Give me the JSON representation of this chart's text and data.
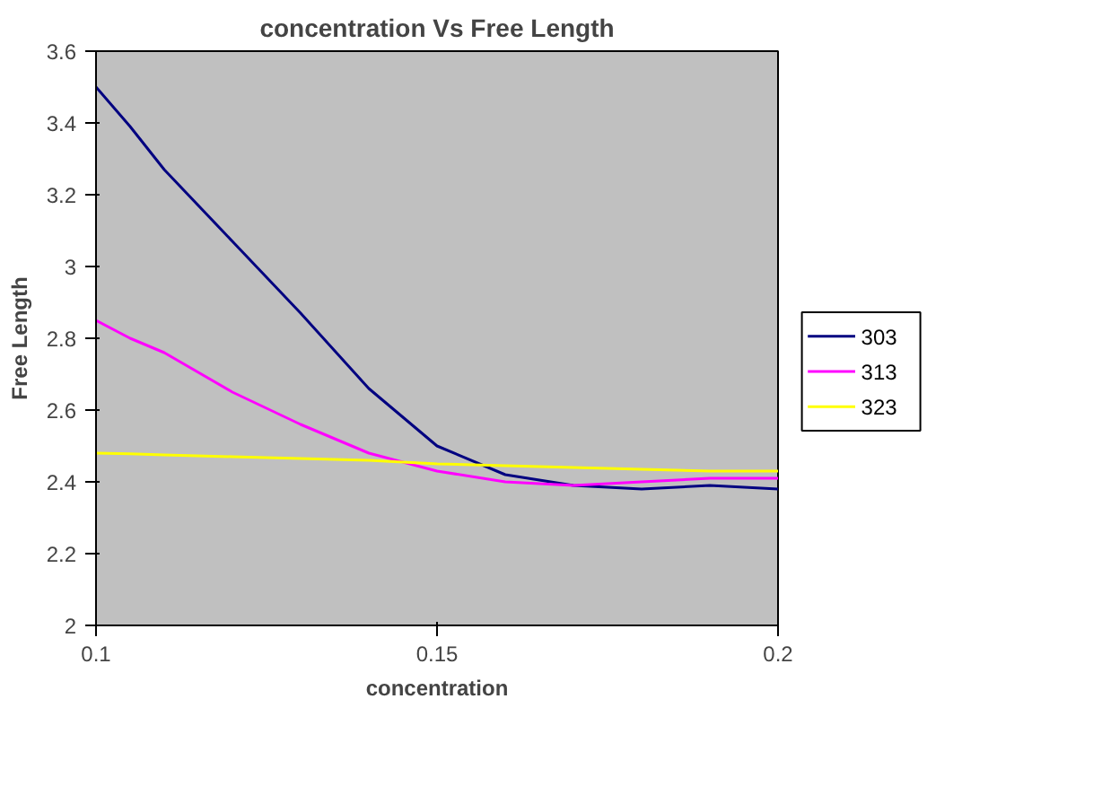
{
  "chart_data": {
    "type": "line",
    "title": "concentration Vs Free Length",
    "xlabel": "concentration",
    "ylabel": "Free Length",
    "x": [
      0.1,
      0.105,
      0.11,
      0.12,
      0.13,
      0.14,
      0.15,
      0.16,
      0.17,
      0.18,
      0.19,
      0.2
    ],
    "series": [
      {
        "name": "303",
        "color": "#000080",
        "values": [
          3.5,
          3.39,
          3.27,
          3.07,
          2.87,
          2.66,
          2.5,
          2.42,
          2.39,
          2.38,
          2.39,
          2.38
        ]
      },
      {
        "name": "313",
        "color": "#ff00ff",
        "values": [
          2.85,
          2.8,
          2.76,
          2.65,
          2.56,
          2.48,
          2.43,
          2.4,
          2.39,
          2.4,
          2.41,
          2.41
        ]
      },
      {
        "name": "323",
        "color": "#ffff00",
        "values": [
          2.48,
          2.478,
          2.475,
          2.47,
          2.465,
          2.46,
          2.45,
          2.445,
          2.44,
          2.435,
          2.43,
          2.43
        ]
      }
    ],
    "xlim": [
      0.1,
      0.2
    ],
    "xticks": [
      0.1,
      0.15,
      0.2
    ],
    "ylim": [
      2,
      3.6
    ],
    "yticks": [
      2,
      2.2,
      2.4,
      2.6,
      2.8,
      3,
      3.2,
      3.4,
      3.6
    ],
    "grid": false,
    "legend": "right",
    "marker": "none",
    "line_style": "solid"
  }
}
